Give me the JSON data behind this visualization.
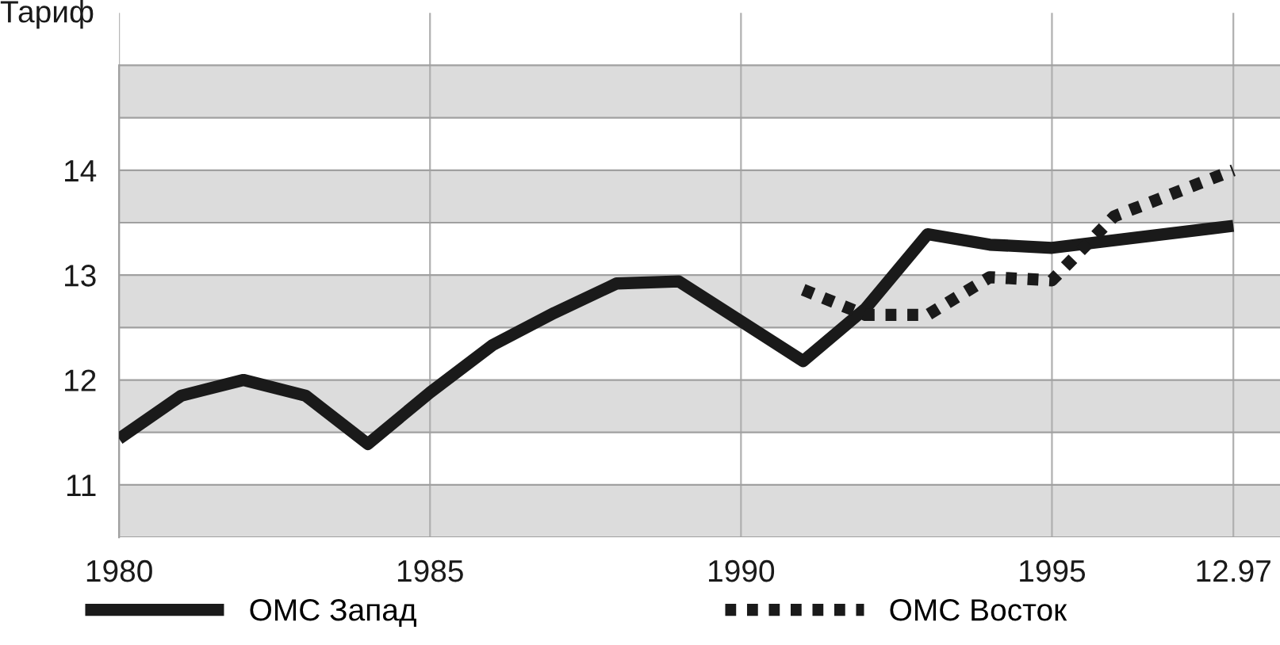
{
  "chart_data": {
    "type": "line",
    "ylabel": "Тариф",
    "x": [
      "1980",
      "1981",
      "1982",
      "1983",
      "1984",
      "1985",
      "1986",
      "1987",
      "1988",
      "1989",
      "1990",
      "1991",
      "1992",
      "1993",
      "1994",
      "1995",
      "1997-12"
    ],
    "series": [
      {
        "name": "ОМС Запад",
        "color": "#1a1a1a",
        "line_style": "solid",
        "values": [
          11.44,
          11.85,
          12.0,
          11.85,
          11.39,
          11.88,
          12.33,
          12.64,
          12.92,
          12.94,
          12.56,
          12.18,
          12.68,
          13.39,
          13.29,
          13.26,
          13.47
        ]
      },
      {
        "name": "ОМС Восток",
        "color": "#1a1a1a",
        "line_style": "dotted",
        "x": [
          "1991",
          "1992",
          "1993",
          "1994",
          "1995",
          "1996",
          "1997-12"
        ],
        "values": [
          12.86,
          12.62,
          12.62,
          12.98,
          12.95,
          13.56,
          14.0
        ]
      }
    ],
    "xlim": [
      "1980",
      "1998-09"
    ],
    "xticks": [
      {
        "value": "1980",
        "label": "1980"
      },
      {
        "value": "1985",
        "label": "1985"
      },
      {
        "value": "1990",
        "label": "1990"
      },
      {
        "value": "1995",
        "label": "1995"
      },
      {
        "value": "1997-12",
        "label": "12.97"
      }
    ],
    "ylim": [
      10.5,
      15.5
    ],
    "yticks": [
      {
        "value": 10.5,
        "label": null
      },
      11,
      {
        "value": 11.5,
        "label": null
      },
      12,
      {
        "value": 12.5,
        "label": null
      },
      13,
      {
        "value": 13.5,
        "label": null
      },
      14,
      {
        "value": 14.5,
        "label": null
      },
      {
        "value": 15,
        "label": null
      }
    ],
    "bands": [
      {
        "axis": "y",
        "from": 10.5,
        "to": 11,
        "color": "#dcdcdc"
      },
      {
        "axis": "y",
        "from": 11.5,
        "to": 12,
        "color": "#dcdcdc"
      },
      {
        "axis": "y",
        "from": 12.5,
        "to": 13,
        "color": "#dcdcdc"
      },
      {
        "axis": "y",
        "from": 13.5,
        "to": 14,
        "color": "#dcdcdc"
      },
      {
        "axis": "y",
        "from": 14.5,
        "to": 15,
        "color": "#dcdcdc"
      }
    ],
    "grid": true,
    "legend": "bottom",
    "marker": "none"
  }
}
